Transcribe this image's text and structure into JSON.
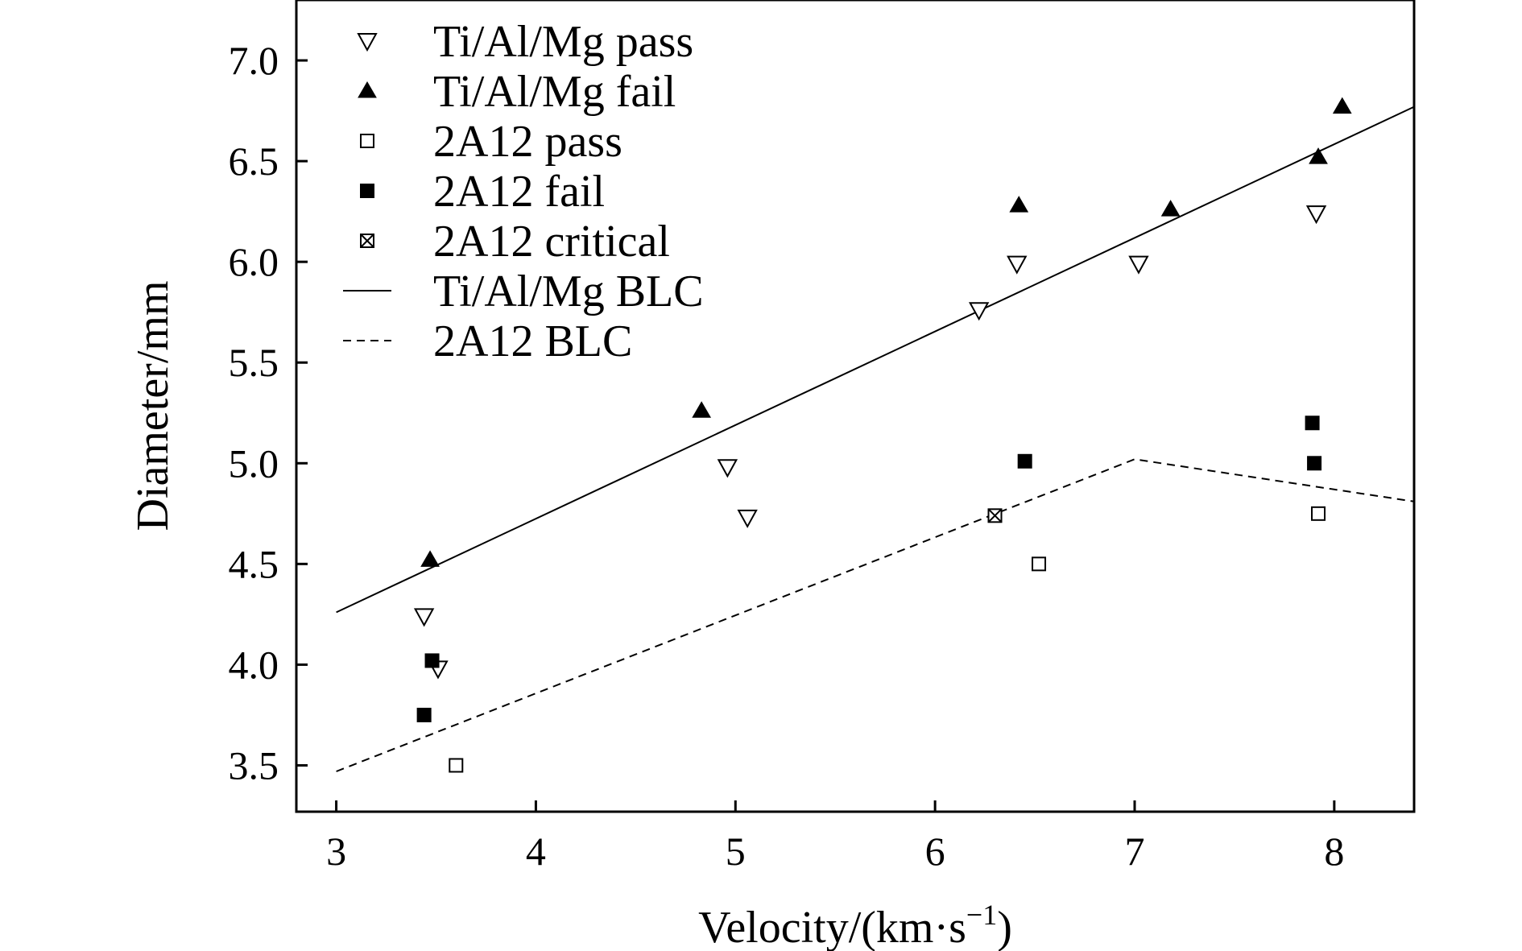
{
  "chart_data": {
    "type": "scatter",
    "title": "",
    "xlabel": "Velocity/(km·s",
    "xlabel_sup": "−1",
    "xlabel_close": ")",
    "ylabel": "Diameter/mm",
    "xlim": [
      2.8,
      8.4
    ],
    "ylim": [
      3.27,
      7.3
    ],
    "x_ticks": [
      3,
      4,
      5,
      6,
      7,
      8
    ],
    "x_tick_labels": [
      "3",
      "4",
      "5",
      "6",
      "7",
      "8"
    ],
    "y_ticks": [
      3.5,
      4.0,
      4.5,
      5.0,
      5.5,
      6.0,
      6.5,
      7.0
    ],
    "y_tick_labels": [
      "3.5",
      "4.0",
      "4.5",
      "5.0",
      "5.5",
      "6.0",
      "6.5",
      "7.0"
    ],
    "grid": false,
    "legend_position": "top-left",
    "series": [
      {
        "name": "Ti/Al/Mg pass",
        "marker": "triangle-down-open",
        "points": [
          {
            "x": 3.44,
            "y": 4.24
          },
          {
            "x": 3.51,
            "y": 3.98
          },
          {
            "x": 4.96,
            "y": 4.98
          },
          {
            "x": 5.06,
            "y": 4.73
          },
          {
            "x": 6.22,
            "y": 5.76
          },
          {
            "x": 6.41,
            "y": 5.99
          },
          {
            "x": 7.02,
            "y": 5.99
          },
          {
            "x": 7.91,
            "y": 6.24
          }
        ]
      },
      {
        "name": "Ti/Al/Mg fail",
        "marker": "triangle-up-filled",
        "points": [
          {
            "x": 3.47,
            "y": 4.52
          },
          {
            "x": 4.83,
            "y": 5.26
          },
          {
            "x": 6.42,
            "y": 6.28
          },
          {
            "x": 7.18,
            "y": 6.26
          },
          {
            "x": 7.92,
            "y": 6.52
          },
          {
            "x": 8.04,
            "y": 6.77
          }
        ]
      },
      {
        "name": "2A12 pass",
        "marker": "square-open",
        "points": [
          {
            "x": 3.6,
            "y": 3.5
          },
          {
            "x": 6.52,
            "y": 4.5
          },
          {
            "x": 7.92,
            "y": 4.75
          }
        ]
      },
      {
        "name": "2A12 fail",
        "marker": "square-filled",
        "points": [
          {
            "x": 3.44,
            "y": 3.75
          },
          {
            "x": 3.48,
            "y": 4.02
          },
          {
            "x": 6.45,
            "y": 5.01
          },
          {
            "x": 7.89,
            "y": 5.2
          },
          {
            "x": 7.9,
            "y": 5.0
          }
        ]
      },
      {
        "name": "2A12 critical",
        "marker": "square-cross",
        "points": [
          {
            "x": 6.3,
            "y": 4.74
          }
        ]
      },
      {
        "name": "Ti/Al/Mg BLC",
        "marker": "line-solid",
        "points": [
          {
            "x": 3.0,
            "y": 4.26
          },
          {
            "x": 8.4,
            "y": 6.77
          }
        ]
      },
      {
        "name": "2A12 BLC",
        "marker": "line-dashed",
        "points": [
          {
            "x": 3.0,
            "y": 3.47
          },
          {
            "x": 7.0,
            "y": 5.02
          },
          {
            "x": 8.4,
            "y": 4.81
          }
        ]
      }
    ]
  }
}
